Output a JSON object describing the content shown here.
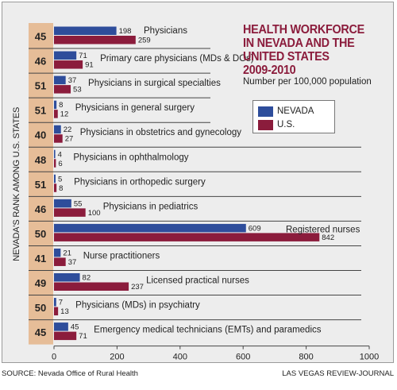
{
  "header": {
    "title_lines": [
      "HEALTH WORKFORCE",
      "IN NEVADA AND THE",
      "UNITED STATES",
      "2009-2010"
    ],
    "subtitle": "Number per 100,000 population"
  },
  "legend": {
    "items": [
      {
        "label": "NEVADA",
        "color": "#2e4d9b"
      },
      {
        "label": "U.S.",
        "color": "#8b1c3c"
      }
    ]
  },
  "footer": {
    "source": "SOURCE: Nevada Office of Rural Health",
    "credit": "LAS VEGAS REVIEW-JOURNAL"
  },
  "chart_data": {
    "type": "bar",
    "orientation": "horizontal",
    "title": "HEALTH WORKFORCE IN NEVADA AND THE UNITED STATES 2009-2010",
    "subtitle": "Number per 100,000 population",
    "rank_axis_label": "NEVADA'S RANK AMONG U.S. STATES",
    "xlim": [
      0,
      1000
    ],
    "xticks": [
      0,
      200,
      400,
      600,
      800,
      1000
    ],
    "categories": [
      "Physicians",
      "Primary care physicians (MDs & DOs)",
      "Physicians in surgical specialties",
      "Physicians in general surgery",
      "Physicians in obstetrics and gynecology",
      "Physicians in ophthalmology",
      "Physicians in orthopedic surgery",
      "Physicians in pediatrics",
      "Registered nurses",
      "Nurse practitioners",
      "Licensed practical nurses",
      "Physicians (MDs) in psychiatry",
      "Emergency medical technicians (EMTs) and paramedics"
    ],
    "ranks": [
      45,
      46,
      51,
      51,
      40,
      48,
      51,
      46,
      50,
      41,
      49,
      50,
      45
    ],
    "series": [
      {
        "name": "NEVADA",
        "color": "#2e4d9b",
        "values": [
          198,
          71,
          37,
          8,
          22,
          4,
          5,
          55,
          609,
          21,
          82,
          7,
          45
        ]
      },
      {
        "name": "U.S.",
        "color": "#8b1c3c",
        "values": [
          259,
          91,
          53,
          12,
          27,
          6,
          8,
          100,
          842,
          37,
          237,
          13,
          71
        ]
      }
    ],
    "grid": false,
    "legend_position": "right"
  }
}
